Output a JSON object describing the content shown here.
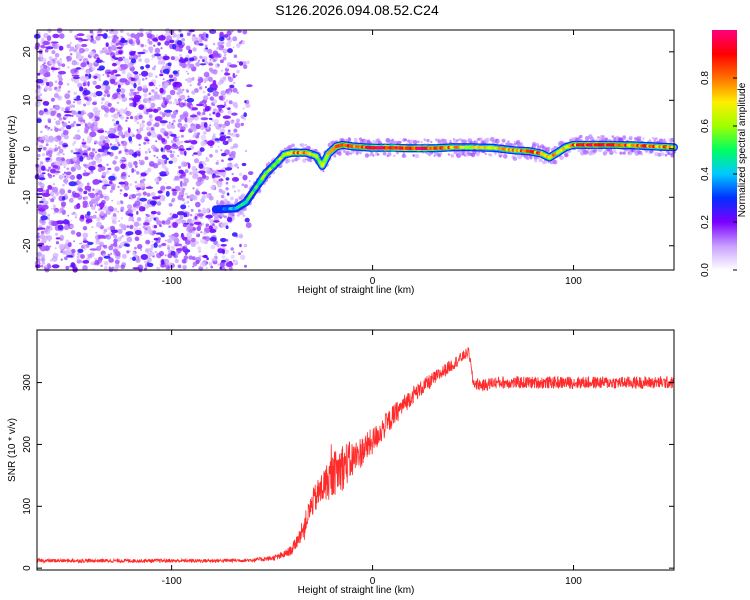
{
  "title": "S126.2026.094.08.52.C24",
  "chart_data": [
    {
      "type": "heatmap",
      "name": "spectrogram",
      "xlabel": "Height of straight line (km)",
      "ylabel": "Frequency (Hz)",
      "xlim": [
        -167,
        150
      ],
      "ylim": [
        -25,
        24.5
      ],
      "xticks": [
        -100,
        0,
        100
      ],
      "yticks": [
        -20,
        -10,
        0,
        10,
        20
      ],
      "colorbar": {
        "label": "Normalized spectral amplitude",
        "range": [
          0,
          1
        ],
        "ticks": [
          0.0,
          0.2,
          0.4,
          0.6,
          0.8
        ],
        "tick_labels": [
          "0.0",
          "0.2",
          "0.4",
          "0.6",
          "0.8"
        ],
        "colors": [
          "#ffffff",
          "#c8a0ff",
          "#7a00ff",
          "#0030ff",
          "#00c8ff",
          "#00ff60",
          "#a0ff00",
          "#ffee00",
          "#ff7000",
          "#ff0000",
          "#ff0080"
        ]
      },
      "noise_region": {
        "x": [
          -167,
          -60
        ],
        "y": [
          -25,
          24.5
        ]
      },
      "ridge": {
        "x": [
          -78,
          -68,
          -63,
          -58,
          -53,
          -48,
          -44,
          -40,
          -37,
          -33,
          -28,
          -25,
          -22,
          -18,
          -15,
          -10,
          0,
          10,
          20,
          30,
          40,
          50,
          60,
          70,
          78,
          84,
          88,
          92,
          96,
          100,
          110,
          120,
          130,
          140,
          150
        ],
        "y": [
          -12.5,
          -12.3,
          -11,
          -8,
          -5,
          -3,
          -1.2,
          -0.8,
          -0.8,
          -0.8,
          -1.5,
          -3.5,
          -1,
          0.5,
          0.8,
          0.5,
          0.2,
          0.2,
          0.1,
          0.1,
          0.3,
          0.3,
          0.2,
          -0.3,
          -0.5,
          -1,
          -1.8,
          -0.8,
          0.3,
          0.8,
          0.8,
          0.8,
          0.7,
          0.5,
          0.3
        ],
        "amplitude": [
          0.28,
          0.42,
          0.5,
          0.5,
          0.55,
          0.6,
          0.7,
          0.75,
          0.8,
          0.78,
          0.6,
          0.65,
          0.7,
          0.85,
          0.9,
          0.75,
          0.9,
          0.92,
          0.9,
          0.88,
          0.75,
          0.65,
          0.7,
          0.75,
          0.78,
          0.8,
          0.78,
          0.7,
          0.75,
          0.8,
          0.85,
          0.82,
          0.8,
          0.8,
          0.75
        ]
      }
    },
    {
      "type": "line",
      "name": "snr",
      "xlabel": "Height of straight line (km)",
      "ylabel": "SNR (10 * v/v)",
      "xlim": [
        -167,
        150
      ],
      "ylim": [
        -3,
        385
      ],
      "xticks": [
        -100,
        0,
        100
      ],
      "yticks": [
        0,
        100,
        200,
        300
      ],
      "color": "#ff2a2a",
      "envelope_x": [
        -167,
        -120,
        -80,
        -60,
        -50,
        -45,
        -40,
        -35,
        -30,
        -25,
        -20,
        -15,
        -10,
        -5,
        0,
        5,
        10,
        20,
        30,
        40,
        48,
        50,
        55,
        60,
        80,
        100,
        120,
        150
      ],
      "envelope_y": [
        12,
        12,
        12,
        13,
        16,
        20,
        30,
        60,
        105,
        130,
        150,
        165,
        175,
        190,
        205,
        225,
        245,
        280,
        305,
        330,
        350,
        300,
        295,
        300,
        300,
        300,
        300,
        300
      ],
      "noise_amp": [
        3,
        3,
        3,
        3,
        4,
        6,
        8,
        15,
        22,
        28,
        35,
        40,
        30,
        25,
        22,
        20,
        18,
        14,
        12,
        10,
        8,
        10,
        10,
        10,
        10,
        10,
        10,
        10
      ]
    }
  ]
}
